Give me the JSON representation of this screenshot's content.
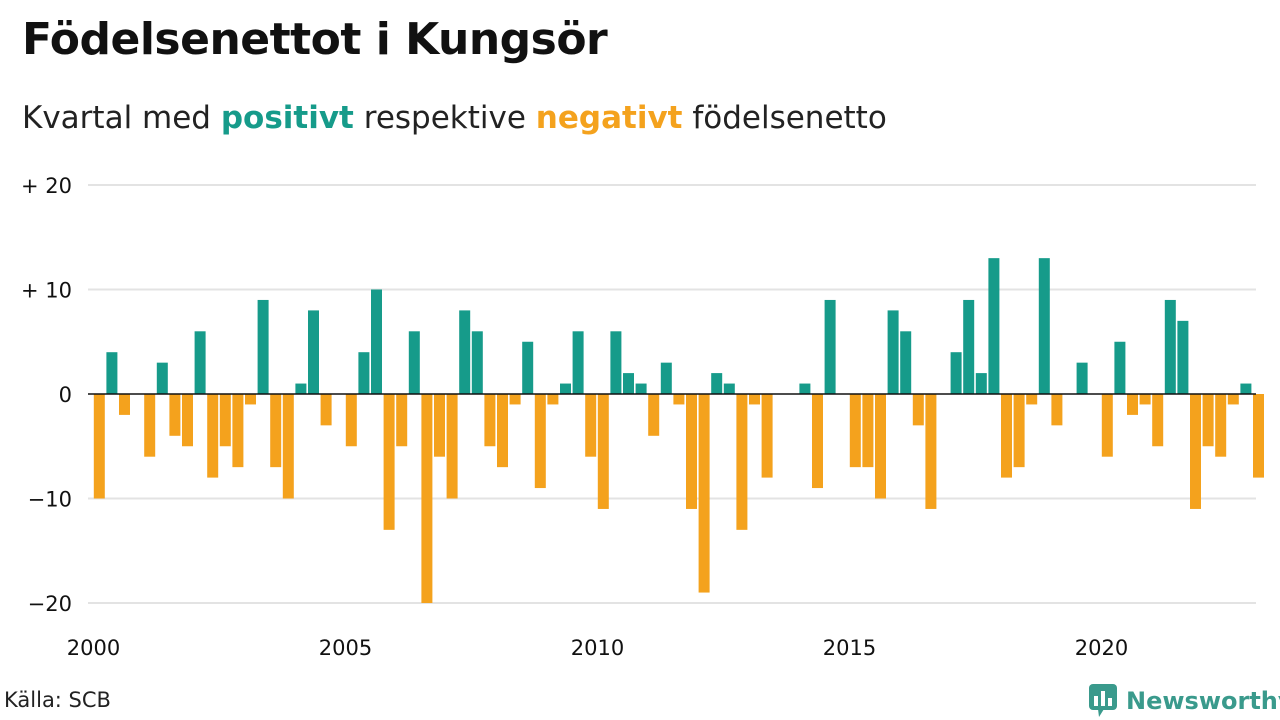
{
  "title": "Födelsenettot i Kungsör",
  "subtitle": {
    "part1": "Kvartal med",
    "positive_word": "positivt",
    "part2": "respektive",
    "negative_word": "negativt",
    "part3": "födelsenetto"
  },
  "source": "Källa: SCB",
  "brand": "Newsworthy",
  "colors": {
    "positive": "#169b8a",
    "negative": "#f4a21d",
    "grid": "#e3e3e3",
    "axis": "#111111",
    "brand": "#3a9a8c"
  },
  "chart_data": {
    "type": "bar",
    "x_start_year": 2000,
    "periods_per_year": 4,
    "values": [
      -10,
      4,
      -2,
      0,
      -6,
      3,
      -4,
      -5,
      6,
      -8,
      -5,
      -7,
      -1,
      9,
      -7,
      -10,
      1,
      8,
      -3,
      0,
      -5,
      4,
      10,
      -13,
      -5,
      6,
      -20,
      -6,
      -10,
      8,
      6,
      -5,
      -7,
      -1,
      5,
      -9,
      -1,
      1,
      6,
      -6,
      -11,
      6,
      2,
      1,
      -4,
      3,
      -1,
      -11,
      -19,
      2,
      1,
      -13,
      -1,
      -8,
      0,
      0,
      1,
      -9,
      9,
      0,
      -7,
      -7,
      -10,
      8,
      6,
      -3,
      -11,
      0,
      4,
      9,
      2,
      13,
      -8,
      -7,
      -1,
      13,
      -3,
      0,
      3,
      0,
      -6,
      5,
      -2,
      -1,
      -5,
      9,
      7,
      -11,
      -5,
      -6,
      -1,
      1,
      -8
    ],
    "x_ticks": [
      2000,
      2005,
      2010,
      2015,
      2020
    ],
    "y_ticks": [
      {
        "value": 20,
        "label": "+ 20"
      },
      {
        "value": 10,
        "label": "+ 10"
      },
      {
        "value": 0,
        "label": "0"
      },
      {
        "value": -10,
        "label": "−10"
      },
      {
        "value": -20,
        "label": "−20"
      }
    ],
    "ylim": [
      -22,
      20
    ],
    "grid": true,
    "legend": "none"
  }
}
